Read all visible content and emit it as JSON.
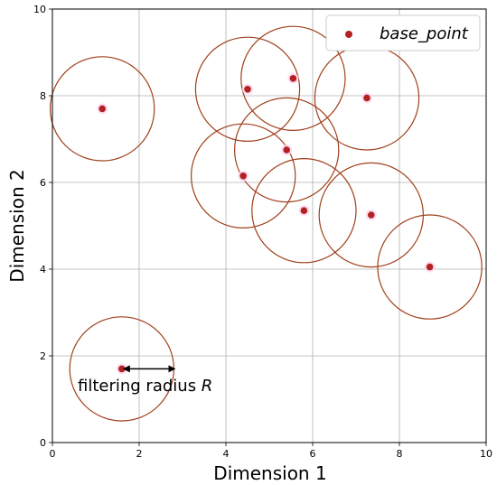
{
  "chart_data": {
    "type": "scatter",
    "title": "",
    "xlabel": "Dimension 1",
    "ylabel": "Dimension 2",
    "xlim": [
      0,
      10
    ],
    "ylim": [
      0,
      10
    ],
    "xticks": [
      0,
      2,
      4,
      6,
      8,
      10
    ],
    "yticks": [
      0,
      2,
      4,
      6,
      8,
      10
    ],
    "grid": true,
    "legend": {
      "location": "top-right",
      "entries": [
        "base_point"
      ]
    },
    "series": [
      {
        "name": "base_point",
        "marker_color": "#b22222",
        "x": [
          1.15,
          4.5,
          5.55,
          7.25,
          5.4,
          4.4,
          5.8,
          7.35,
          8.7,
          1.6
        ],
        "y": [
          7.7,
          8.15,
          8.4,
          7.95,
          6.75,
          6.15,
          5.35,
          5.25,
          4.05,
          1.7
        ]
      }
    ],
    "circles": {
      "color": "#a0401c",
      "radius": 1.2
    },
    "annotation": {
      "text_prefix": "filtering radius ",
      "text_symbol": "R",
      "arrow_from": [
        1.6,
        1.7
      ],
      "arrow_to": [
        2.8,
        1.7
      ]
    }
  }
}
